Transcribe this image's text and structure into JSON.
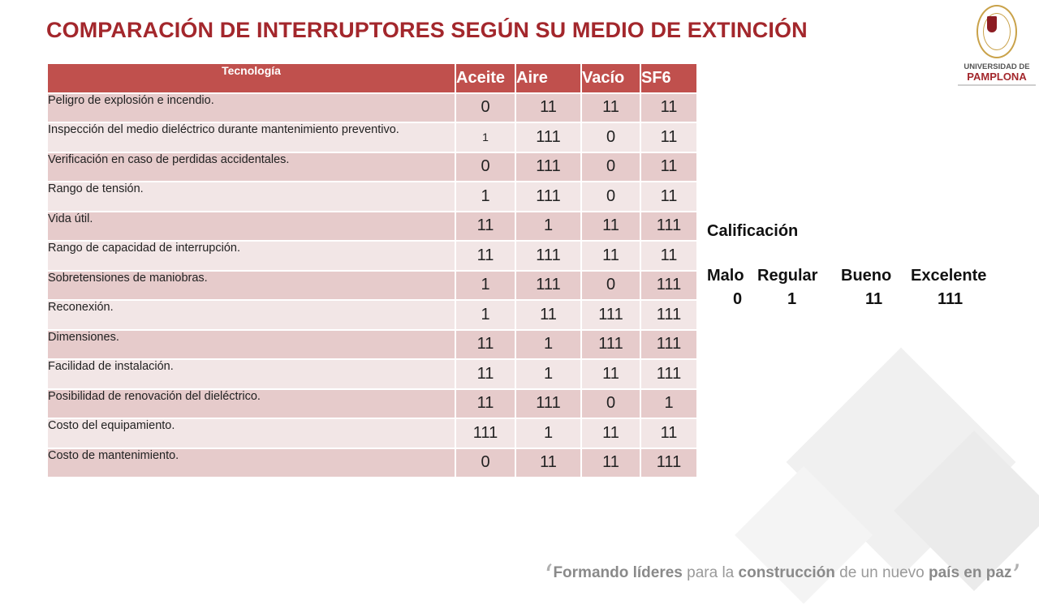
{
  "title": "COMPARACIÓN DE INTERRUPTORES SEGÚN SU MEDIO DE EXTINCIÓN",
  "logo": {
    "line1": "UNIVERSIDAD DE",
    "line2": "PAMPLONA"
  },
  "table": {
    "header": [
      "Tecnología",
      "Aceite",
      "Aire",
      "Vacío",
      "SF6"
    ],
    "rows": [
      {
        "criterion": "Peligro de explosión e incendio.",
        "values": [
          "0",
          "11",
          "11",
          "11"
        ]
      },
      {
        "criterion": "Inspección del medio dieléctrico durante mantenimiento preventivo.",
        "values": [
          "1",
          "111",
          "0",
          "11"
        ]
      },
      {
        "criterion": "Verificación en caso de perdidas accidentales.",
        "values": [
          "0",
          "111",
          "0",
          "11"
        ]
      },
      {
        "criterion": "Rango de tensión.",
        "values": [
          "1",
          "111",
          "0",
          "11"
        ]
      },
      {
        "criterion": "Vida útil.",
        "values": [
          "11",
          "1",
          "11",
          "111"
        ]
      },
      {
        "criterion": "Rango de capacidad de interrupción.",
        "values": [
          "11",
          "111",
          "11",
          "11"
        ]
      },
      {
        "criterion": "Sobretensiones de maniobras.",
        "values": [
          "1",
          "111",
          "0",
          "111"
        ]
      },
      {
        "criterion": "Reconexión.",
        "values": [
          "1",
          "11",
          "111",
          "111"
        ]
      },
      {
        "criterion": "Dimensiones.",
        "values": [
          "11",
          "1",
          "111",
          "111"
        ]
      },
      {
        "criterion": "Facilidad de instalación.",
        "values": [
          "11",
          "1",
          "11",
          "111"
        ]
      },
      {
        "criterion": "Posibilidad de renovación del dieléctrico.",
        "values": [
          "11",
          "111",
          "0",
          "1"
        ]
      },
      {
        "criterion": "Costo del equipamiento.",
        "values": [
          "111",
          "1",
          "11",
          "11"
        ]
      },
      {
        "criterion": "Costo de mantenimiento.",
        "values": [
          "0",
          "11",
          "11",
          "111"
        ]
      }
    ]
  },
  "legend": {
    "title": "Calificación",
    "items": [
      {
        "label": "Malo",
        "value": "0"
      },
      {
        "label": "Regular",
        "value": "1"
      },
      {
        "label": "Bueno",
        "value": "11"
      },
      {
        "label": "Excelente",
        "value": "111"
      }
    ]
  },
  "footer": {
    "part1": "Formando líderes",
    "part2": " para la ",
    "part3": "construcción",
    "part4": " de un nuevo ",
    "part5": "país en paz"
  },
  "colors": {
    "title": "#a3272c",
    "header": "#c0504d",
    "row_dark": "#e6cbcb",
    "row_light": "#f2e6e6"
  }
}
